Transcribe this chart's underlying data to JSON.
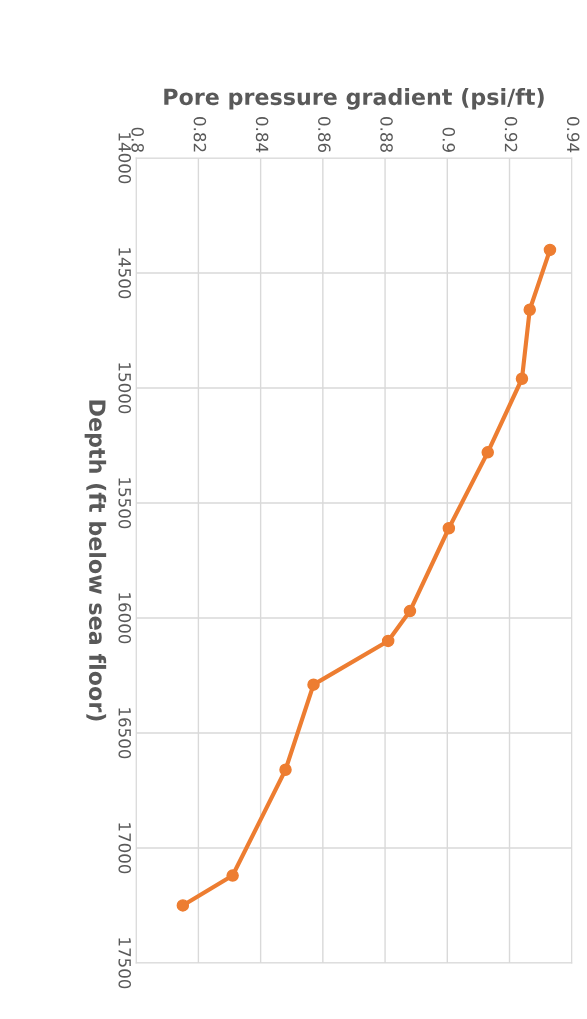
{
  "chart_data": {
    "type": "line",
    "xlabel": "Pore pressure gradient (psi/ft)",
    "ylabel": "Depth (ft below sea floor)",
    "series": [
      {
        "color": "#ed7d31",
        "x": [
          0.933,
          0.9265,
          0.924,
          0.913,
          0.9005,
          0.888,
          0.881,
          0.857,
          0.848,
          0.831,
          0.815
        ],
        "values": [
          14400,
          14660,
          14960,
          15280,
          15610,
          15970,
          16100,
          16290,
          16660,
          17120,
          17250
        ]
      }
    ],
    "xlim": [
      0.8,
      0.94
    ],
    "xticks": [
      0.8,
      0.82,
      0.84,
      0.86,
      0.88,
      0.9,
      0.92,
      0.94
    ],
    "ylim": [
      17500,
      14000
    ],
    "yticks": [
      14000,
      14500,
      15000,
      15500,
      16000,
      16500,
      17000,
      17500
    ],
    "grid": true,
    "marker": "circle",
    "line_style": "solid"
  }
}
